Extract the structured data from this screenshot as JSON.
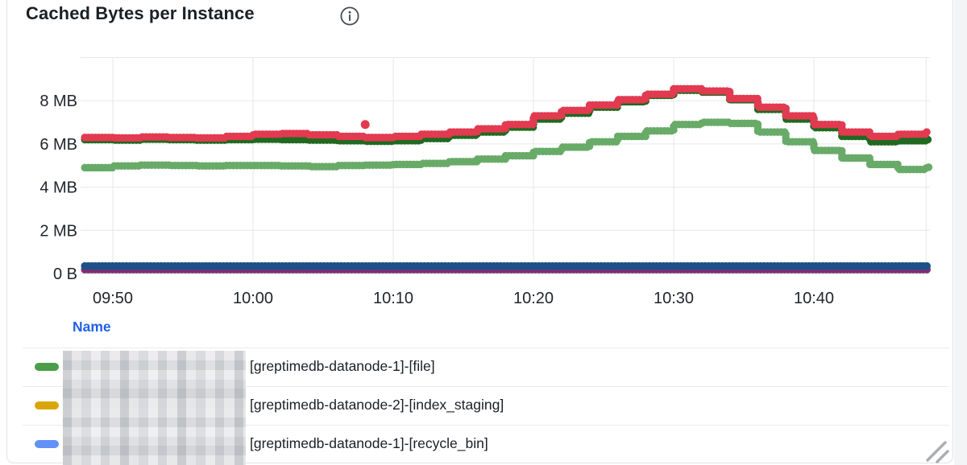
{
  "panel": {
    "title": "Cached Bytes per Instance",
    "info_icon": "info-circle-icon"
  },
  "colors": {
    "grid": "#e5e7ea",
    "axis_text": "#21262c",
    "legend_header": "#2160e6",
    "panel_border": "#e0e3e7",
    "resize_handle": "#a9aeb4"
  },
  "chart_data": {
    "type": "line",
    "style": "dotted-step",
    "title": "Cached Bytes per Instance",
    "xlabel": "",
    "ylabel": "",
    "x_start": "09:48",
    "x_end": "10:48",
    "x_step_minutes": 2,
    "x_ticks": [
      {
        "label": "09:50",
        "minutes_from_start": 2
      },
      {
        "label": "10:00",
        "minutes_from_start": 12
      },
      {
        "label": "10:10",
        "minutes_from_start": 22
      },
      {
        "label": "10:20",
        "minutes_from_start": 32
      },
      {
        "label": "10:30",
        "minutes_from_start": 42
      },
      {
        "label": "10:40",
        "minutes_from_start": 52
      }
    ],
    "y_ticks": [
      {
        "label": "0 B",
        "value_mb": 0
      },
      {
        "label": "2 MB",
        "value_mb": 2
      },
      {
        "label": "4 MB",
        "value_mb": 4
      },
      {
        "label": "6 MB",
        "value_mb": 6
      },
      {
        "label": "8 MB",
        "value_mb": 8
      }
    ],
    "ylim_mb": [
      0,
      10
    ],
    "grid": true,
    "series": [
      {
        "id": "red",
        "color": "#e23a50",
        "values_mb": [
          6.3,
          6.28,
          6.32,
          6.3,
          6.28,
          6.35,
          6.45,
          6.48,
          6.42,
          6.35,
          6.3,
          6.35,
          6.45,
          6.55,
          6.7,
          6.9,
          7.3,
          7.55,
          7.8,
          8.05,
          8.3,
          8.55,
          8.45,
          8.1,
          7.7,
          7.3,
          6.9,
          6.55,
          6.35,
          6.45,
          6.55
        ]
      },
      {
        "id": "dark-green",
        "color": "#206920",
        "values_mb": [
          6.2,
          6.18,
          6.22,
          6.2,
          6.18,
          6.2,
          6.22,
          6.2,
          6.18,
          6.15,
          6.12,
          6.15,
          6.25,
          6.4,
          6.55,
          6.78,
          7.15,
          7.42,
          7.7,
          7.95,
          8.25,
          8.48,
          8.4,
          8.05,
          7.6,
          7.15,
          6.75,
          6.35,
          6.1,
          6.15,
          6.2
        ]
      },
      {
        "id": "light-green",
        "color": "#68ab68",
        "values_mb": [
          4.9,
          4.98,
          5.02,
          5.0,
          4.98,
          5.0,
          5.0,
          4.98,
          4.95,
          5.0,
          5.02,
          5.05,
          5.1,
          5.18,
          5.3,
          5.45,
          5.65,
          5.85,
          6.1,
          6.35,
          6.6,
          6.9,
          7.0,
          6.95,
          6.55,
          6.1,
          5.7,
          5.35,
          5.05,
          4.82,
          4.92
        ]
      },
      {
        "id": "navy-blue",
        "color": "#1d4f8a",
        "constant_mb": 0.35
      },
      {
        "id": "purple",
        "color": "#7d2e71",
        "constant_mb": 0.18
      }
    ],
    "outliers": [
      {
        "series": "red",
        "minutes_from_start": 20,
        "value_mb": 6.9
      }
    ]
  },
  "legend": {
    "header": "Name",
    "rows": [
      {
        "color": "#4a9e4a",
        "redacted_prefix": true,
        "label": "[greptimedb-datanode-1]-[file]"
      },
      {
        "color": "#d9a609",
        "redacted_prefix": true,
        "label": "[greptimedb-datanode-2]-[index_staging]"
      },
      {
        "color": "#6292f5",
        "redacted_prefix": true,
        "label": "[greptimedb-datanode-1]-[recycle_bin]"
      }
    ]
  }
}
